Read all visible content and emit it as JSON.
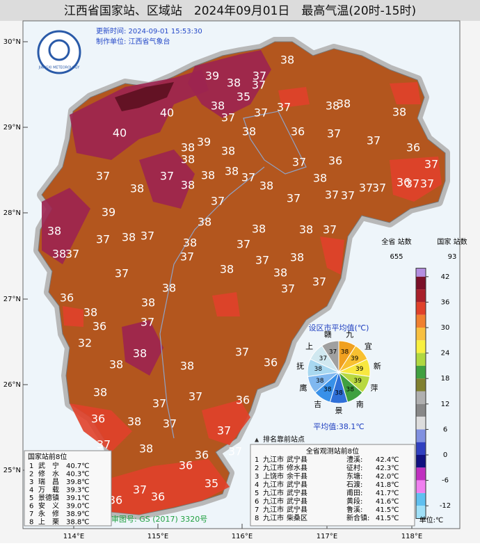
{
  "header": {
    "title": "江西省国家站、区域站　2024年09月01日　最高气温(20时-15时)",
    "update_time": "更新时间: 2024-09-01  15:53:30",
    "producer": "制作单位: 江西省气象台",
    "logo_text": "JIANGXI METEOROLOGY"
  },
  "lat_labels": [
    "30°N",
    "29°N",
    "28°N",
    "27°N",
    "26°N",
    "25°N"
  ],
  "lon_labels": [
    "114°E",
    "115°E",
    "116°E",
    "117°E",
    "118°E"
  ],
  "stations": [
    39,
    37,
    38,
    38,
    37,
    35,
    40,
    40,
    38,
    37,
    37,
    38,
    38,
    38,
    37,
    38,
    36,
    37,
    37,
    39,
    38,
    38,
    38,
    37,
    36,
    36,
    37,
    37,
    38,
    37,
    38,
    38,
    38,
    37,
    38,
    38,
    37,
    37,
    36,
    37,
    37,
    37,
    37,
    37,
    37,
    39,
    38,
    37,
    38,
    37,
    38,
    38,
    38,
    37,
    38,
    37,
    38,
    37,
    37,
    37,
    38,
    37,
    38,
    38,
    37,
    38,
    37,
    38,
    36,
    38,
    37,
    38,
    36,
    37,
    32,
    38,
    38,
    38,
    37,
    36,
    38,
    37,
    37,
    36,
    36,
    38,
    37,
    37,
    37,
    36,
    36,
    37,
    35,
    36,
    36,
    36
  ],
  "colorbar": {
    "counts_title_all": "全省\n站数",
    "counts_all": "655",
    "counts_title_nat": "国家\n站数",
    "counts_nat": "93",
    "ticks": [
      42,
      36,
      30,
      24,
      18,
      12,
      6,
      0,
      -6,
      -12
    ],
    "unit": "单位:℃"
  },
  "city_pie": {
    "title": "设区市平均值(℃)",
    "cities": [
      "赣",
      "九",
      "宜",
      "新",
      "萍",
      "南",
      "景",
      "吉",
      "鹰",
      "抚",
      "上"
    ],
    "values": [
      37,
      38,
      39,
      39,
      39,
      38,
      38,
      38,
      38,
      38,
      37
    ],
    "average": "平均值:38.1℃"
  },
  "national_top": {
    "title": "国家站前8位",
    "rows": [
      [
        "1",
        "武　宁",
        "40.7℃"
      ],
      [
        "2",
        "修　水",
        "40.3℃"
      ],
      [
        "3",
        "瑞　昌",
        "39.8℃"
      ],
      [
        "4",
        "万　载",
        "39.3℃"
      ],
      [
        "5",
        "景德镇",
        "39.1℃"
      ],
      [
        "6",
        "安　义",
        "39.0℃"
      ],
      [
        "7",
        "永　修",
        "38.9℃"
      ],
      [
        "8",
        "上　栗",
        "38.8℃"
      ]
    ]
  },
  "province_top": {
    "note": "排名靠前站点",
    "title": "全省观测站前8位",
    "rows": [
      [
        "1",
        "九江市",
        "武宁县",
        "澧溪:",
        "42.4℃"
      ],
      [
        "2",
        "九江市",
        "修水县",
        "征村:",
        "42.3℃"
      ],
      [
        "3",
        "上饶市",
        "余干县",
        "东塘:",
        "42.0℃"
      ],
      [
        "4",
        "九江市",
        "武宁县",
        "石渡:",
        "41.8℃"
      ],
      [
        "5",
        "九江市",
        "武宁县",
        "甫田:",
        "41.7℃"
      ],
      [
        "6",
        "九江市",
        "武宁县",
        "黄段:",
        "41.6℃"
      ],
      [
        "7",
        "九江市",
        "武宁县",
        "鲁溪:",
        "41.5℃"
      ],
      [
        "8",
        "九江市",
        "柴桑区",
        "新合镇:",
        "41.5℃"
      ]
    ]
  },
  "approval": "审图号: GS (2017) 3320号"
}
